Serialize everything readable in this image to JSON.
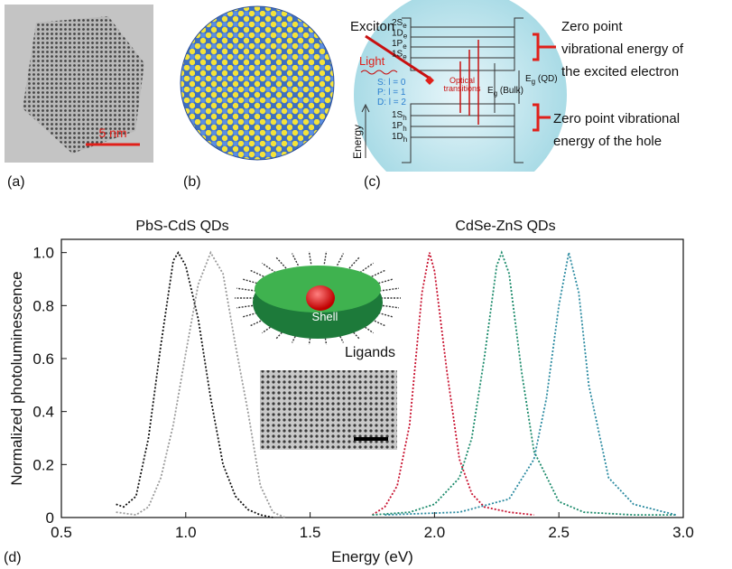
{
  "panel_a": {
    "label": "(a)",
    "scale_bar": "5 nm"
  },
  "panel_b": {
    "label": "(b)"
  },
  "panel_c": {
    "label": "(c)",
    "exciton": "Exciton",
    "light": "Light",
    "energy": "Energy",
    "electron_levels": [
      [
        "2S",
        "e"
      ],
      [
        "1D",
        "e"
      ],
      [
        "1P",
        "e"
      ],
      [
        "1S",
        "e"
      ]
    ],
    "hole_levels": [
      [
        "1S",
        "h"
      ],
      [
        "1P",
        "h"
      ],
      [
        "1D",
        "h"
      ]
    ],
    "orbitals": [
      "S: l = 0",
      "P: l = 1",
      "D: l = 2"
    ],
    "optical_transitions": [
      "Optical",
      "transitions"
    ],
    "eg_qd": [
      "E",
      "g",
      " (QD)"
    ],
    "eg_bulk": [
      "E",
      "g",
      " (Bulk)"
    ],
    "zero_point_electron": [
      "Zero point",
      "vibrational energy of",
      "the excited electron"
    ],
    "zero_point_hole": [
      "Zero point vibrational",
      "energy of the hole"
    ]
  },
  "panel_d_label": "(d)",
  "chart_data": {
    "type": "line",
    "xlabel": "Energy (eV)",
    "ylabel": "Normalized photoluminescence",
    "annotations": [
      "PbS-CdS QDs",
      "CdSe-ZnS QDs",
      "Shell",
      "Ligands"
    ],
    "xlim": [
      0.5,
      3.0
    ],
    "ylim": [
      0,
      1.05
    ],
    "xticks": [
      0.5,
      {
        "value": 1,
        "label": "1.0"
      },
      1.5,
      {
        "value": 2,
        "label": "2.0"
      },
      2.5,
      {
        "value": 3,
        "label": "3.0"
      }
    ],
    "yticks": [
      0,
      0.2,
      0.4,
      0.6,
      0.8,
      {
        "value": 1,
        "label": "1.0"
      }
    ],
    "line_style": "dotted",
    "series": [
      {
        "color": "#111111",
        "x": [
          0.72,
          0.75,
          0.8,
          0.85,
          0.9,
          0.95,
          0.97,
          1.0,
          1.05,
          1.1,
          1.15,
          1.2,
          1.25,
          1.3,
          1.35
        ],
        "values": [
          0.05,
          0.04,
          0.08,
          0.3,
          0.65,
          0.97,
          1.0,
          0.95,
          0.75,
          0.45,
          0.2,
          0.08,
          0.03,
          0.01,
          0
        ]
      },
      {
        "color": "#9a9a9a",
        "x": [
          0.72,
          0.8,
          0.85,
          0.9,
          0.95,
          1.0,
          1.05,
          1.1,
          1.15,
          1.2,
          1.25,
          1.3,
          1.35,
          1.4
        ],
        "values": [
          0.02,
          0.01,
          0.04,
          0.15,
          0.35,
          0.62,
          0.88,
          1.0,
          0.92,
          0.65,
          0.4,
          0.12,
          0.02,
          0
        ]
      },
      {
        "color": "#c8102e",
        "x": [
          1.75,
          1.8,
          1.85,
          1.9,
          1.95,
          1.98,
          2.0,
          2.05,
          2.1,
          2.15,
          2.2,
          2.3,
          2.4
        ],
        "values": [
          0.01,
          0.04,
          0.12,
          0.35,
          0.85,
          1.0,
          0.93,
          0.55,
          0.22,
          0.09,
          0.04,
          0.02,
          0.01
        ]
      },
      {
        "color": "#1a8a6a",
        "x": [
          1.75,
          1.9,
          2.0,
          2.1,
          2.15,
          2.2,
          2.25,
          2.27,
          2.3,
          2.35,
          2.4,
          2.5,
          2.6,
          2.8,
          2.97
        ],
        "values": [
          0.01,
          0.02,
          0.05,
          0.15,
          0.3,
          0.6,
          0.95,
          1.0,
          0.92,
          0.55,
          0.25,
          0.06,
          0.02,
          0.01,
          0.01
        ]
      },
      {
        "color": "#2a8aa0",
        "x": [
          1.8,
          2.1,
          2.3,
          2.4,
          2.45,
          2.5,
          2.54,
          2.58,
          2.62,
          2.7,
          2.8,
          2.97
        ],
        "values": [
          0.01,
          0.02,
          0.07,
          0.22,
          0.45,
          0.8,
          1.0,
          0.85,
          0.5,
          0.15,
          0.05,
          0.01
        ]
      }
    ]
  }
}
